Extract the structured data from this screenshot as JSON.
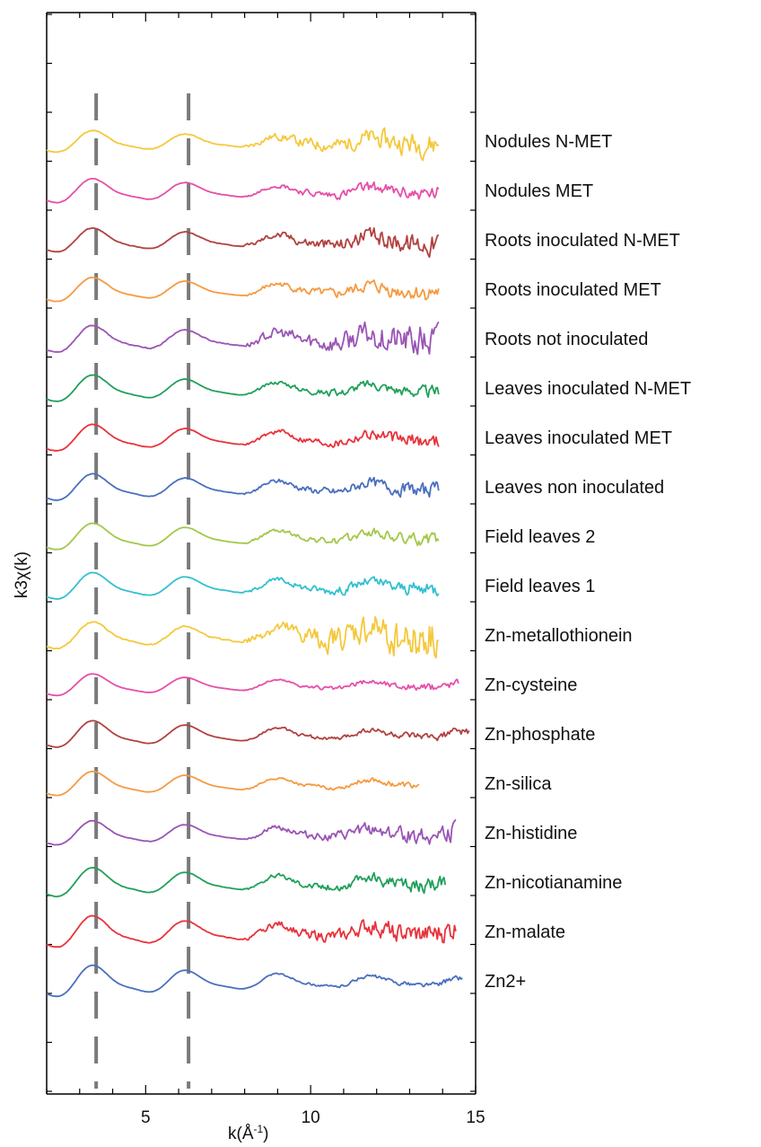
{
  "chart_data": {
    "type": "line",
    "xlabel": "k(Å",
    "xlabel_sup": "-1",
    "xlabel_suffix": ")",
    "ylabel": "k3χ(k)",
    "xlim": [
      2,
      15
    ],
    "xticks": [
      5,
      10,
      15
    ],
    "xtick_labels": [
      "5",
      "10",
      "15"
    ],
    "reference_lines_x": [
      3.5,
      6.3
    ],
    "grid": false,
    "legend": "labels at right end of each trace",
    "series": [
      {
        "name": "Nodules N-MET",
        "color": "#f5c83c",
        "x_end": 13.9,
        "amp": 0.9,
        "noise": 1.0,
        "seed": 11
      },
      {
        "name": "Nodules MET",
        "color": "#e64fa8",
        "x_end": 13.9,
        "amp": 1.0,
        "noise": 0.6,
        "seed": 23
      },
      {
        "name": "Roots inoculated N-MET",
        "color": "#b0423f",
        "x_end": 13.9,
        "amp": 1.0,
        "noise": 0.9,
        "seed": 37
      },
      {
        "name": "Roots inoculated MET",
        "color": "#f59a42",
        "x_end": 13.9,
        "amp": 1.0,
        "noise": 0.7,
        "seed": 41
      },
      {
        "name": "Roots not inoculated",
        "color": "#9a55b5",
        "x_end": 13.9,
        "amp": 1.1,
        "noise": 1.4,
        "seed": 53
      },
      {
        "name": "Leaves inoculated N-MET",
        "color": "#20a05a",
        "x_end": 13.9,
        "amp": 1.1,
        "noise": 0.5,
        "seed": 67
      },
      {
        "name": "Leaves inoculated MET",
        "color": "#e8333c",
        "x_end": 13.9,
        "amp": 1.1,
        "noise": 0.6,
        "seed": 71
      },
      {
        "name": "Leaves non inoculated",
        "color": "#4a6fbf",
        "x_end": 13.9,
        "amp": 1.1,
        "noise": 0.6,
        "seed": 83
      },
      {
        "name": "Field leaves 2",
        "color": "#a3c84a",
        "x_end": 13.9,
        "amp": 1.1,
        "noise": 0.5,
        "seed": 97
      },
      {
        "name": "Field leaves 1",
        "color": "#32c0d0",
        "x_end": 13.9,
        "amp": 1.1,
        "noise": 0.6,
        "seed": 101
      },
      {
        "name": "Zn-metallothionein",
        "color": "#f5c83c",
        "x_end": 13.9,
        "amp": 1.1,
        "noise": 1.8,
        "seed": 113
      },
      {
        "name": "Zn-cysteine",
        "color": "#e64fa8",
        "x_end": 14.5,
        "amp": 0.9,
        "noise": 0.3,
        "seed": 127
      },
      {
        "name": "Zn-phosphate",
        "color": "#b0423f",
        "x_end": 14.8,
        "amp": 1.1,
        "noise": 0.3,
        "seed": 131
      },
      {
        "name": "Zn-silica",
        "color": "#f59a42",
        "x_end": 13.3,
        "amp": 1.0,
        "noise": 0.3,
        "seed": 139
      },
      {
        "name": "Zn-histidine",
        "color": "#9a55b5",
        "x_end": 14.4,
        "amp": 1.0,
        "noise": 0.7,
        "seed": 149
      },
      {
        "name": "Zn-nicotianamine",
        "color": "#20a05a",
        "x_end": 14.1,
        "amp": 1.2,
        "noise": 0.6,
        "seed": 157
      },
      {
        "name": "Zn-malate",
        "color": "#e8333c",
        "x_end": 14.4,
        "amp": 1.3,
        "noise": 0.9,
        "seed": 163
      },
      {
        "name": "Zn2+",
        "color": "#4a6fbf",
        "x_end": 14.6,
        "amp": 1.3,
        "noise": 0.2,
        "seed": 173
      }
    ]
  }
}
